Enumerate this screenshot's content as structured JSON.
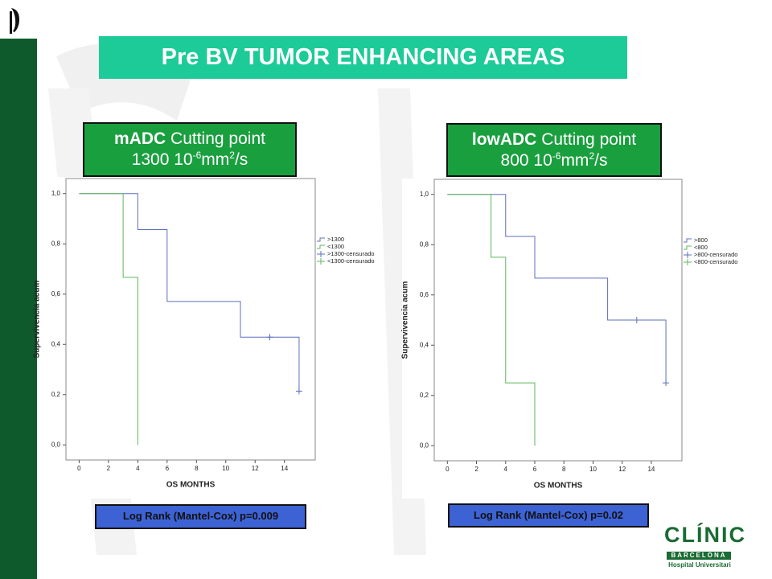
{
  "slide": {
    "title": "Pre BV TUMOR ENHANCING AREAS"
  },
  "logo": {
    "name": "CLÍNIC",
    "city": "BARCELONA",
    "subtitle": "Hospital Universitari"
  },
  "chart_data": [
    {
      "type": "step",
      "title_parts": [
        "mADC",
        "Cutting point",
        "1300 10",
        "-6",
        "mm",
        "2",
        "/s"
      ],
      "annotation": "Log Rank (Mantel-Cox) p=0.009",
      "xlabel": "OS MONTHS",
      "ylabel": "Supervivencia acum",
      "xlim": [
        -0.9,
        16.1
      ],
      "ylim": [
        -0.06,
        1.06
      ],
      "xticks": [
        0,
        2,
        4,
        6,
        8,
        10,
        12,
        14
      ],
      "yticks": [
        {
          "value": 0,
          "label": "0,0"
        },
        {
          "value": 0.2,
          "label": "0,2"
        },
        {
          "value": 0.4,
          "label": "0,4"
        },
        {
          "value": 0.6,
          "label": "0,6"
        },
        {
          "value": 0.8,
          "label": "0,8"
        },
        {
          "value": 1,
          "label": "1,0"
        }
      ],
      "legend": "right",
      "series": [
        {
          "name": ">1300",
          "color": "#5b6fbd",
          "x": [
            0,
            4,
            6,
            11,
            15
          ],
          "values": [
            1.0,
            0.857,
            0.571,
            0.429,
            0.214
          ]
        },
        {
          "name": "<1300",
          "color": "#5cb85c",
          "x": [
            0,
            3,
            4
          ],
          "values": [
            1.0,
            0.667,
            0.0
          ]
        },
        {
          "name": ">1300-censurado",
          "color": "#5b6fbd",
          "marker": "+",
          "x": [
            13,
            15
          ],
          "values": [
            0.429,
            0.214
          ]
        },
        {
          "name": "<1300-censurado",
          "color": "#5cb85c",
          "marker": "+",
          "x": [],
          "values": []
        }
      ]
    },
    {
      "type": "step",
      "title_parts": [
        "lowADC",
        "Cutting point",
        "800 10",
        "-6",
        "mm",
        "2",
        "/s"
      ],
      "annotation": "Log Rank (Mantel-Cox) p=0.02",
      "xlabel": "OS MONTHS",
      "ylabel": "Supervivencia acum",
      "xlim": [
        -0.9,
        16.1
      ],
      "ylim": [
        -0.06,
        1.06
      ],
      "xticks": [
        0,
        2,
        4,
        6,
        8,
        10,
        12,
        14
      ],
      "yticks": [
        {
          "value": 0,
          "label": "0,0"
        },
        {
          "value": 0.2,
          "label": "0,2"
        },
        {
          "value": 0.4,
          "label": "0,4"
        },
        {
          "value": 0.6,
          "label": "0,6"
        },
        {
          "value": 0.8,
          "label": "0,8"
        },
        {
          "value": 1,
          "label": "1,0"
        }
      ],
      "legend": "right",
      "series": [
        {
          "name": ">800",
          "color": "#5b6fbd",
          "x": [
            0,
            4,
            6,
            11,
            15
          ],
          "values": [
            1.0,
            0.833,
            0.667,
            0.5,
            0.25
          ]
        },
        {
          "name": "<800",
          "color": "#5cb85c",
          "x": [
            0,
            3,
            4,
            6
          ],
          "values": [
            1.0,
            0.75,
            0.25,
            0.0
          ]
        },
        {
          "name": ">800-censurado",
          "color": "#5b6fbd",
          "marker": "+",
          "x": [
            13,
            15
          ],
          "values": [
            0.5,
            0.25
          ]
        },
        {
          "name": "<800-censurado",
          "color": "#5cb85c",
          "marker": "+",
          "x": [],
          "values": []
        }
      ]
    }
  ]
}
